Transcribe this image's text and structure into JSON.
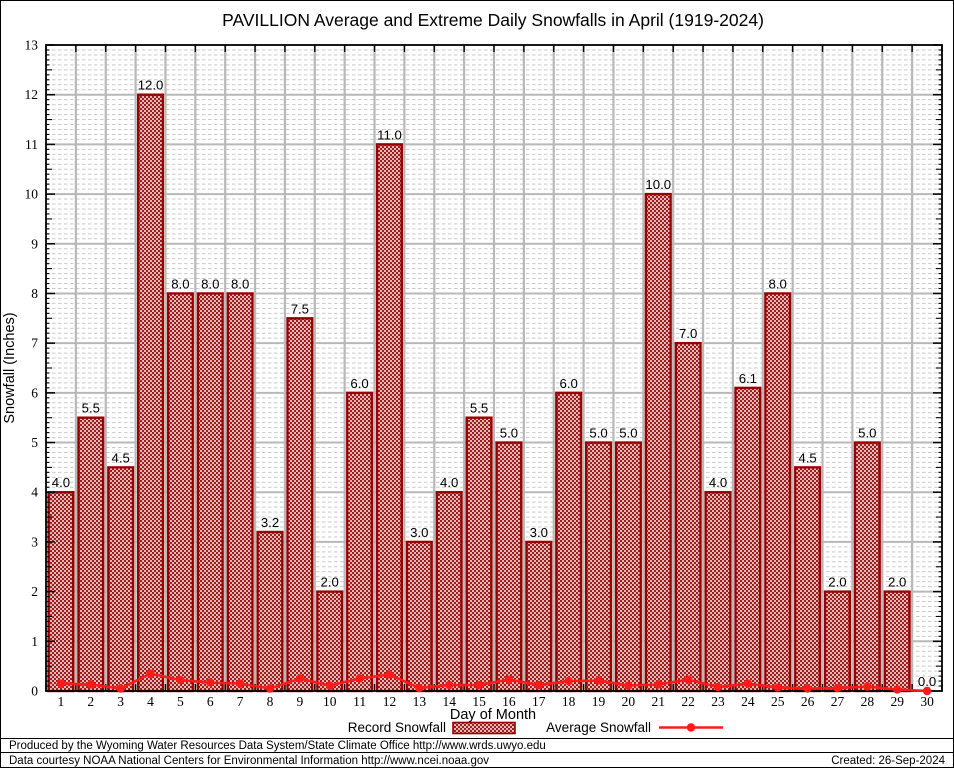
{
  "title": "PAVILLION Average and Extreme Daily Snowfalls in April (1919-2024)",
  "chart_data": {
    "type": "bar",
    "title": "PAVILLION Average and Extreme Daily Snowfalls in April (1919-2024)",
    "xlabel": "Day of Month",
    "ylabel": "Snowfall (Inches)",
    "ylim": [
      0,
      13
    ],
    "y_major_step": 1,
    "y_minor_step": 0.1,
    "grid": true,
    "legend_position": "bottom",
    "categories": [
      1,
      2,
      3,
      4,
      5,
      6,
      7,
      8,
      9,
      10,
      11,
      12,
      13,
      14,
      15,
      16,
      17,
      18,
      19,
      20,
      21,
      22,
      23,
      24,
      25,
      26,
      27,
      28,
      29,
      30
    ],
    "series": [
      {
        "name": "Record Snowfall",
        "style": "bar-hatched",
        "values": [
          4.0,
          5.5,
          4.5,
          12.0,
          8.0,
          8.0,
          8.0,
          3.2,
          7.5,
          2.0,
          6.0,
          11.0,
          3.0,
          4.0,
          5.5,
          5.0,
          3.0,
          6.0,
          5.0,
          5.0,
          10.0,
          7.0,
          4.0,
          6.1,
          8.0,
          4.5,
          2.0,
          5.0,
          2.0,
          0.0
        ],
        "bar_labels": [
          "4.0",
          "5.5",
          "4.5",
          "12.0",
          "8.0",
          "8.0",
          "8.0",
          "3.2",
          "7.5",
          "2.0",
          "6.0",
          "11.0",
          "3.0",
          "4.0",
          "5.5",
          "5.0",
          "3.0",
          "6.0",
          "5.0",
          "5.0",
          "10.0",
          "7.0",
          "4.0",
          "6.1",
          "8.0",
          "4.5",
          "2.0",
          "5.0",
          "2.0",
          "0.0"
        ]
      },
      {
        "name": "Average Snowfall",
        "style": "line-markers",
        "values": [
          0.15,
          0.13,
          0.05,
          0.35,
          0.22,
          0.17,
          0.15,
          0.05,
          0.25,
          0.11,
          0.25,
          0.33,
          0.06,
          0.12,
          0.12,
          0.23,
          0.12,
          0.2,
          0.21,
          0.11,
          0.13,
          0.23,
          0.08,
          0.15,
          0.07,
          0.05,
          0.06,
          0.09,
          0.03,
          0.0
        ]
      }
    ],
    "colors": {
      "bar_border": "#990000",
      "bar_hatch": "#991111",
      "avg_line": "#ff1a1a",
      "grid_major": "#b8b8b8",
      "grid_minor": "#c9c9c9",
      "axis": "#000000"
    }
  },
  "legend": {
    "record_label": "Record Snowfall",
    "average_label": "Average Snowfall"
  },
  "footer": {
    "produced_by": "Produced by the Wyoming Water Resources Data System/State Climate Office http://www.wrds.uwyo.edu",
    "data_courtesy": "Data courtesy NOAA National Centers for Environmental Information http://www.ncei.noaa.gov",
    "created": "Created: 26-Sep-2024"
  }
}
